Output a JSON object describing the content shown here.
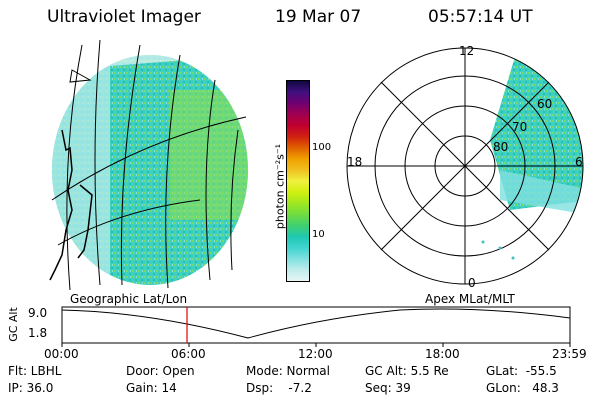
{
  "header": {
    "instrument": "Ultraviolet Imager",
    "date": "19 Mar 07",
    "time": "05:57:14 UT"
  },
  "colorbar": {
    "unit_label": "photon cm⁻²s⁻¹",
    "tick_100": "100",
    "tick_10": "10",
    "colors": [
      "#e8f4f4",
      "#c0ecec",
      "#80e0e0",
      "#40d4d0",
      "#20c8b0",
      "#40d070",
      "#70dc40",
      "#a0e820",
      "#d0f010",
      "#f0f040",
      "#f0c020",
      "#f0a000",
      "#e06000",
      "#d02010",
      "#c00030",
      "#a00050",
      "#700070",
      "#401080",
      "#100840"
    ]
  },
  "geo_panel": {
    "label": "Geographic Lat/Lon"
  },
  "polar_panel": {
    "label": "Apex  MLat/MLT",
    "mlt_labels": {
      "top": "12",
      "left": "18",
      "right": "6",
      "bottom": "0"
    },
    "mlat_labels": [
      "60",
      "70",
      "80"
    ]
  },
  "altitude_plot": {
    "ylabel": "GC Alt",
    "y_ticks": [
      "9.0",
      "1.8"
    ],
    "x_ticks": [
      "00:00",
      "06:00",
      "12:00",
      "18:00",
      "23:59"
    ],
    "current_time_marker": "05:57",
    "current_time_color": "#e00000"
  },
  "status": {
    "filter": "Flt: LBHL",
    "ip": "IP: 36.0",
    "door": "Door: Open",
    "gain": "Gain: 14",
    "mode": "Mode: Normal",
    "dsp": "Dsp:    -7.2",
    "gc_alt": "GC Alt: 5.5 Re",
    "seq": "Seq: 39",
    "glat": "GLat:  -55.5",
    "glon": "GLon:   48.3"
  }
}
